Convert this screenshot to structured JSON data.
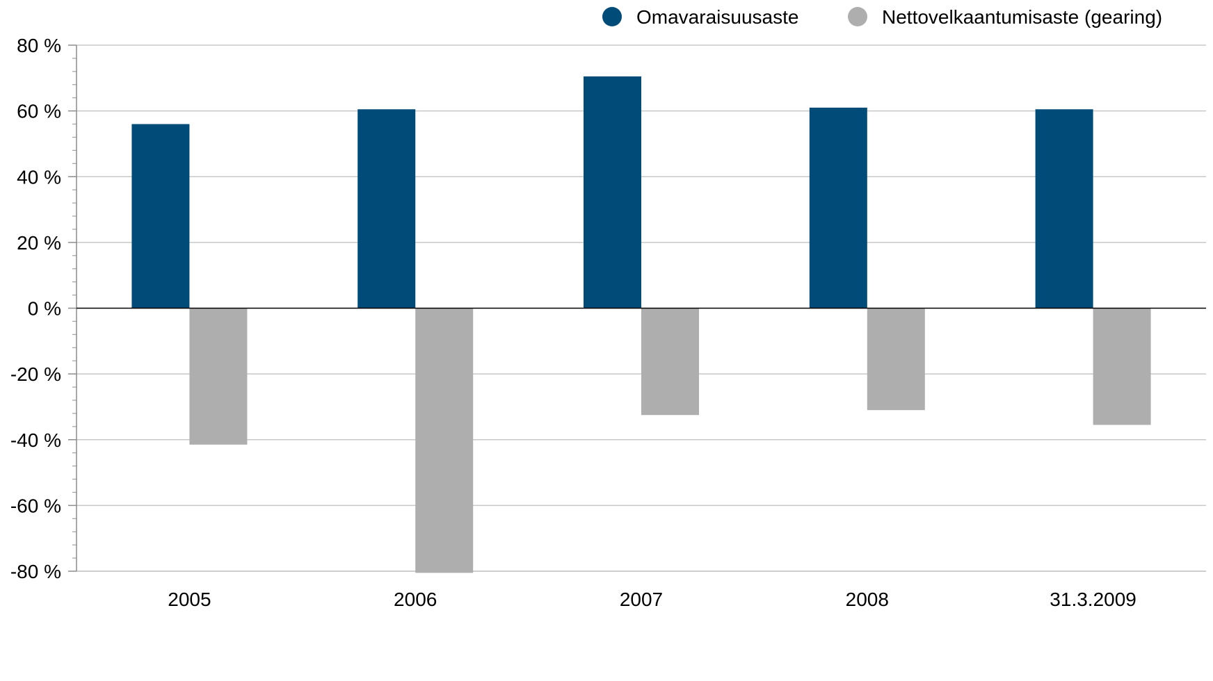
{
  "chart_data": {
    "type": "bar",
    "title": "",
    "xlabel": "",
    "ylabel": "",
    "categories": [
      "2005",
      "2006",
      "2007",
      "2008",
      "31.3.2009"
    ],
    "series": [
      {
        "name": "Omavaraisuusaste",
        "color": "#004b78",
        "values": [
          56,
          60.5,
          70.5,
          61,
          60.5
        ]
      },
      {
        "name": "Nettovelkaantumisaste (gearing)",
        "color": "#aeaeae",
        "values": [
          -41.5,
          -80.5,
          -32.5,
          -31,
          -35.5
        ]
      }
    ],
    "ylim": [
      -80,
      80
    ],
    "yticks": [
      80,
      60,
      40,
      20,
      0,
      -20,
      -40,
      -60,
      -80
    ],
    "ytick_labels": [
      "80 %",
      "60 %",
      "40 %",
      "20 %",
      "0 %",
      "-20 %",
      "-40 %",
      "-60 %",
      "-80 %"
    ],
    "grid": true,
    "legend_position": "top-right"
  }
}
